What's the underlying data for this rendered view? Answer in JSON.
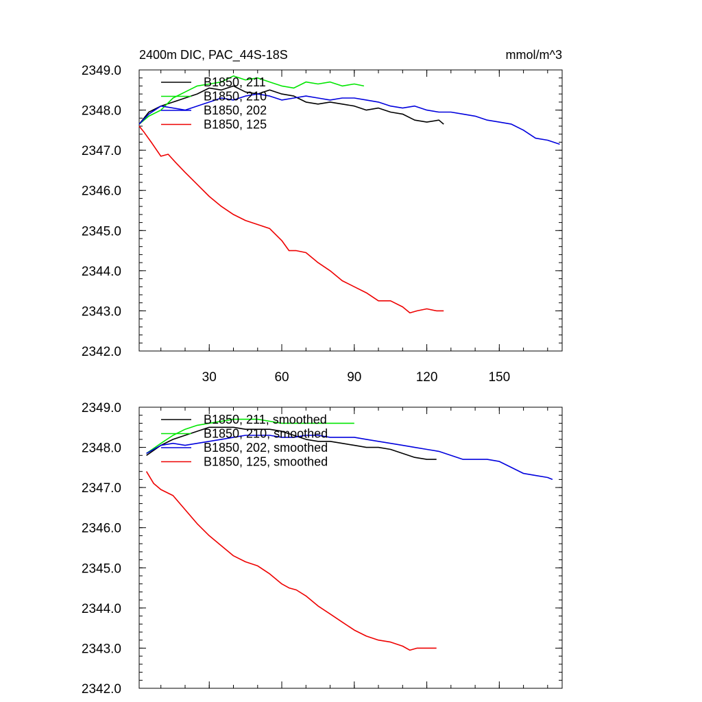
{
  "header": {
    "title": "2400m DIC, PAC_44S-18S",
    "units": "mmol/m^3"
  },
  "colors": {
    "black": "#000000",
    "green": "#00e600",
    "blue": "#0000dd",
    "red": "#ee0000"
  },
  "chart_data": [
    {
      "type": "line",
      "panel": "top",
      "xlim": [
        1,
        176
      ],
      "ylim": [
        2342.0,
        2349.0
      ],
      "xticks": [
        30,
        60,
        90,
        120,
        150
      ],
      "xtick_labels": [
        "30",
        "60",
        "90",
        "120",
        "150"
      ],
      "yticks": [
        2342.0,
        2343.0,
        2344.0,
        2345.0,
        2346.0,
        2347.0,
        2348.0,
        2349.0
      ],
      "ytick_labels": [
        "2342.0",
        "2343.0",
        "2344.0",
        "2345.0",
        "2346.0",
        "2347.0",
        "2348.0",
        "2349.0"
      ],
      "grid": false,
      "legend_position": "top-left",
      "series": [
        {
          "name": "B1850, 211",
          "color": "black",
          "x": [
            1,
            5,
            10,
            15,
            20,
            25,
            30,
            35,
            40,
            45,
            50,
            55,
            60,
            65,
            70,
            75,
            80,
            85,
            90,
            95,
            100,
            105,
            110,
            115,
            120,
            125,
            127
          ],
          "y": [
            2347.65,
            2347.95,
            2348.1,
            2348.2,
            2348.3,
            2348.4,
            2348.55,
            2348.5,
            2348.6,
            2348.45,
            2348.4,
            2348.5,
            2348.4,
            2348.35,
            2348.2,
            2348.15,
            2348.2,
            2348.15,
            2348.1,
            2348.0,
            2348.05,
            2347.95,
            2347.9,
            2347.75,
            2347.7,
            2347.75,
            2347.65
          ]
        },
        {
          "name": "B1850, 210",
          "color": "green",
          "x": [
            1,
            5,
            10,
            15,
            20,
            25,
            30,
            35,
            40,
            45,
            50,
            55,
            60,
            65,
            70,
            75,
            80,
            85,
            90,
            94
          ],
          "y": [
            2347.65,
            2347.85,
            2348.0,
            2348.3,
            2348.45,
            2348.6,
            2348.65,
            2348.7,
            2348.85,
            2348.75,
            2348.8,
            2348.7,
            2348.6,
            2348.55,
            2348.7,
            2348.65,
            2348.7,
            2348.6,
            2348.65,
            2348.6
          ]
        },
        {
          "name": "B1850, 202",
          "color": "blue",
          "x": [
            1,
            5,
            10,
            15,
            20,
            25,
            30,
            35,
            40,
            45,
            50,
            55,
            60,
            65,
            70,
            75,
            80,
            85,
            90,
            95,
            100,
            105,
            110,
            115,
            120,
            125,
            130,
            135,
            140,
            145,
            150,
            155,
            160,
            165,
            170,
            175
          ],
          "y": [
            2347.65,
            2347.9,
            2348.1,
            2348.05,
            2348.0,
            2348.1,
            2348.2,
            2348.3,
            2348.25,
            2348.35,
            2348.4,
            2348.35,
            2348.25,
            2348.3,
            2348.35,
            2348.3,
            2348.25,
            2348.3,
            2348.3,
            2348.25,
            2348.2,
            2348.1,
            2348.05,
            2348.1,
            2348.0,
            2347.95,
            2347.95,
            2347.9,
            2347.85,
            2347.75,
            2347.7,
            2347.65,
            2347.5,
            2347.3,
            2347.25,
            2347.15
          ]
        },
        {
          "name": "B1850, 125",
          "color": "red",
          "x": [
            1,
            3,
            6,
            10,
            13,
            16,
            20,
            25,
            30,
            35,
            40,
            45,
            50,
            55,
            60,
            63,
            66,
            70,
            75,
            80,
            85,
            90,
            95,
            100,
            105,
            110,
            113,
            116,
            120,
            124,
            127
          ],
          "y": [
            2347.6,
            2347.45,
            2347.2,
            2346.85,
            2346.9,
            2346.7,
            2346.45,
            2346.15,
            2345.85,
            2345.6,
            2345.4,
            2345.25,
            2345.15,
            2345.05,
            2344.75,
            2344.5,
            2344.5,
            2344.45,
            2344.2,
            2344.0,
            2343.75,
            2343.6,
            2343.45,
            2343.25,
            2343.25,
            2343.1,
            2342.95,
            2343.0,
            2343.05,
            2343.0,
            2343.0
          ]
        }
      ]
    },
    {
      "type": "line",
      "panel": "bottom",
      "xlim": [
        1,
        176
      ],
      "ylim": [
        2342.0,
        2349.0
      ],
      "xticks": [
        30,
        60,
        90,
        120,
        150
      ],
      "yticks": [
        2342.0,
        2343.0,
        2344.0,
        2345.0,
        2346.0,
        2347.0,
        2348.0,
        2349.0
      ],
      "ytick_labels": [
        "2342.0",
        "2343.0",
        "2344.0",
        "2345.0",
        "2346.0",
        "2347.0",
        "2348.0",
        "2349.0"
      ],
      "grid": false,
      "legend_position": "top-left",
      "series": [
        {
          "name": "B1850, 211, smoothed",
          "color": "black",
          "x": [
            4,
            10,
            15,
            20,
            25,
            30,
            35,
            40,
            45,
            50,
            55,
            60,
            65,
            70,
            75,
            80,
            85,
            90,
            95,
            100,
            105,
            110,
            115,
            120,
            124
          ],
          "y": [
            2347.8,
            2348.05,
            2348.2,
            2348.3,
            2348.4,
            2348.5,
            2348.5,
            2348.5,
            2348.45,
            2348.45,
            2348.45,
            2348.4,
            2348.3,
            2348.2,
            2348.15,
            2348.15,
            2348.1,
            2348.05,
            2348.0,
            2348.0,
            2347.95,
            2347.85,
            2347.75,
            2347.7,
            2347.7
          ]
        },
        {
          "name": "B1850, 210, smoothed",
          "color": "green",
          "x": [
            4,
            10,
            15,
            20,
            25,
            30,
            35,
            40,
            45,
            50,
            55,
            60,
            65,
            70,
            75,
            80,
            85,
            90
          ],
          "y": [
            2347.85,
            2348.1,
            2348.3,
            2348.45,
            2348.55,
            2348.6,
            2348.65,
            2348.7,
            2348.7,
            2348.7,
            2348.65,
            2348.6,
            2348.6,
            2348.6,
            2348.6,
            2348.6,
            2348.6,
            2348.6
          ]
        },
        {
          "name": "B1850, 202, smoothed",
          "color": "blue",
          "x": [
            4,
            10,
            15,
            20,
            25,
            30,
            35,
            40,
            45,
            50,
            55,
            60,
            65,
            70,
            75,
            80,
            85,
            90,
            95,
            100,
            105,
            110,
            115,
            120,
            125,
            130,
            135,
            140,
            145,
            150,
            155,
            160,
            165,
            170,
            172
          ],
          "y": [
            2347.85,
            2348.05,
            2348.1,
            2348.05,
            2348.1,
            2348.15,
            2348.2,
            2348.25,
            2348.3,
            2348.3,
            2348.3,
            2348.25,
            2348.25,
            2348.3,
            2348.3,
            2348.25,
            2348.25,
            2348.25,
            2348.2,
            2348.15,
            2348.1,
            2348.05,
            2348.0,
            2347.95,
            2347.9,
            2347.8,
            2347.7,
            2347.7,
            2347.7,
            2347.65,
            2347.5,
            2347.35,
            2347.3,
            2347.25,
            2347.2
          ]
        },
        {
          "name": "B1850, 125, smoothed",
          "color": "red",
          "x": [
            4,
            7,
            10,
            15,
            20,
            25,
            30,
            35,
            40,
            45,
            50,
            55,
            60,
            63,
            66,
            70,
            75,
            80,
            85,
            90,
            95,
            100,
            105,
            110,
            113,
            116,
            120,
            124
          ],
          "y": [
            2347.4,
            2347.1,
            2346.95,
            2346.8,
            2346.45,
            2346.1,
            2345.8,
            2345.55,
            2345.3,
            2345.15,
            2345.05,
            2344.85,
            2344.6,
            2344.5,
            2344.45,
            2344.3,
            2344.05,
            2343.85,
            2343.65,
            2343.45,
            2343.3,
            2343.2,
            2343.15,
            2343.05,
            2342.95,
            2343.0,
            2343.0,
            2343.0
          ]
        }
      ]
    }
  ]
}
